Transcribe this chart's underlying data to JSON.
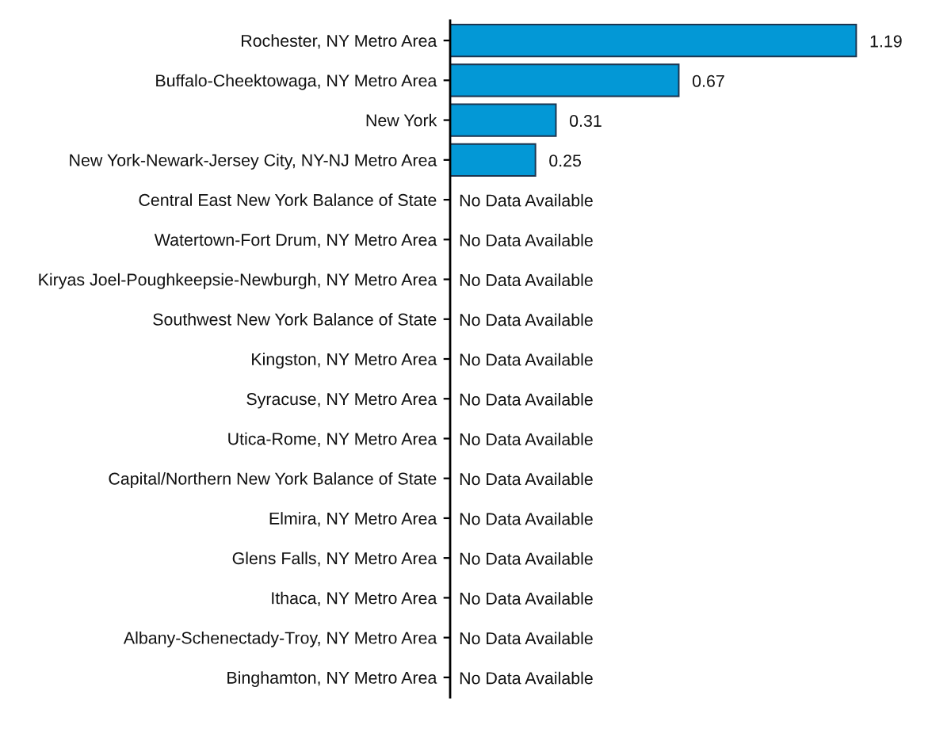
{
  "chart_data": {
    "type": "bar",
    "orientation": "horizontal",
    "tick_labels": "y",
    "color": "#0398d6",
    "categories": [
      "Rochester, NY Metro Area",
      "Buffalo-Cheektowaga, NY Metro Area",
      "New York",
      "New York-Newark-Jersey City, NY-NJ Metro Area",
      "Central East New York Balance of State",
      "Watertown-Fort Drum, NY Metro Area",
      "Kiryas Joel-Poughkeepsie-Newburgh, NY Metro Area",
      "Southwest New York Balance of State",
      "Kingston, NY Metro Area",
      "Syracuse, NY Metro Area",
      "Utica-Rome, NY Metro Area",
      "Capital/Northern New York Balance of State",
      "Elmira, NY Metro Area",
      "Glens Falls, NY Metro Area",
      "Ithaca, NY Metro Area",
      "Albany-Schenectady-Troy, NY Metro Area",
      "Binghamton, NY Metro Area"
    ],
    "values": [
      1.19,
      0.67,
      0.31,
      0.25,
      null,
      null,
      null,
      null,
      null,
      null,
      null,
      null,
      null,
      null,
      null,
      null,
      null
    ],
    "value_labels": [
      "1.19",
      "0.67",
      "0.31",
      "0.25",
      "No Data Available",
      "No Data Available",
      "No Data Available",
      "No Data Available",
      "No Data Available",
      "No Data Available",
      "No Data Available",
      "No Data Available",
      "No Data Available",
      "No Data Available",
      "No Data Available",
      "No Data Available",
      "No Data Available"
    ]
  }
}
